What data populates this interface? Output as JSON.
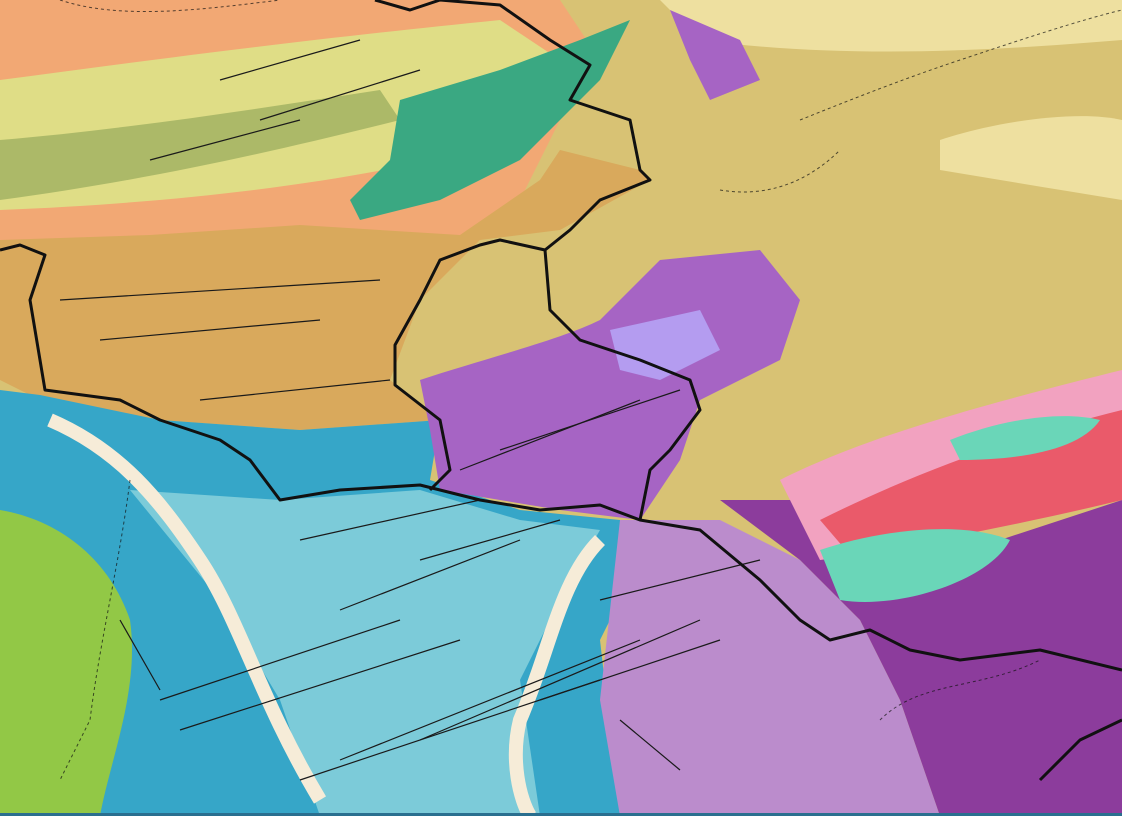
{
  "map": {
    "type": "geological map",
    "colors": {
      "orange_upland": "#f2a874",
      "yellow_green": "#dce68a",
      "olive_band": "#9fb060",
      "teal_green": "#3aa882",
      "tan_plain": "#d9a95c",
      "khaki_plateau": "#d8c274",
      "pale_khaki": "#eee0a0",
      "blue_zone": "#36a6c8",
      "light_cyan": "#7ccbd9",
      "pale_cream": "#f6ecd8",
      "bright_green": "#92c846",
      "purple": "#a664c4",
      "lilac": "#bb8ccc",
      "dark_purple": "#8c3c9c",
      "violet_light": "#b49cf0",
      "red_pink": "#ea5a6a",
      "pink": "#f2a2c0",
      "mint": "#6ad6b8",
      "border": "#111111",
      "fault": "#1a1a1a",
      "bottom_strip": "#2a6f8f"
    },
    "icons": [
      "national-border",
      "regional-boundary",
      "fault-line"
    ]
  }
}
